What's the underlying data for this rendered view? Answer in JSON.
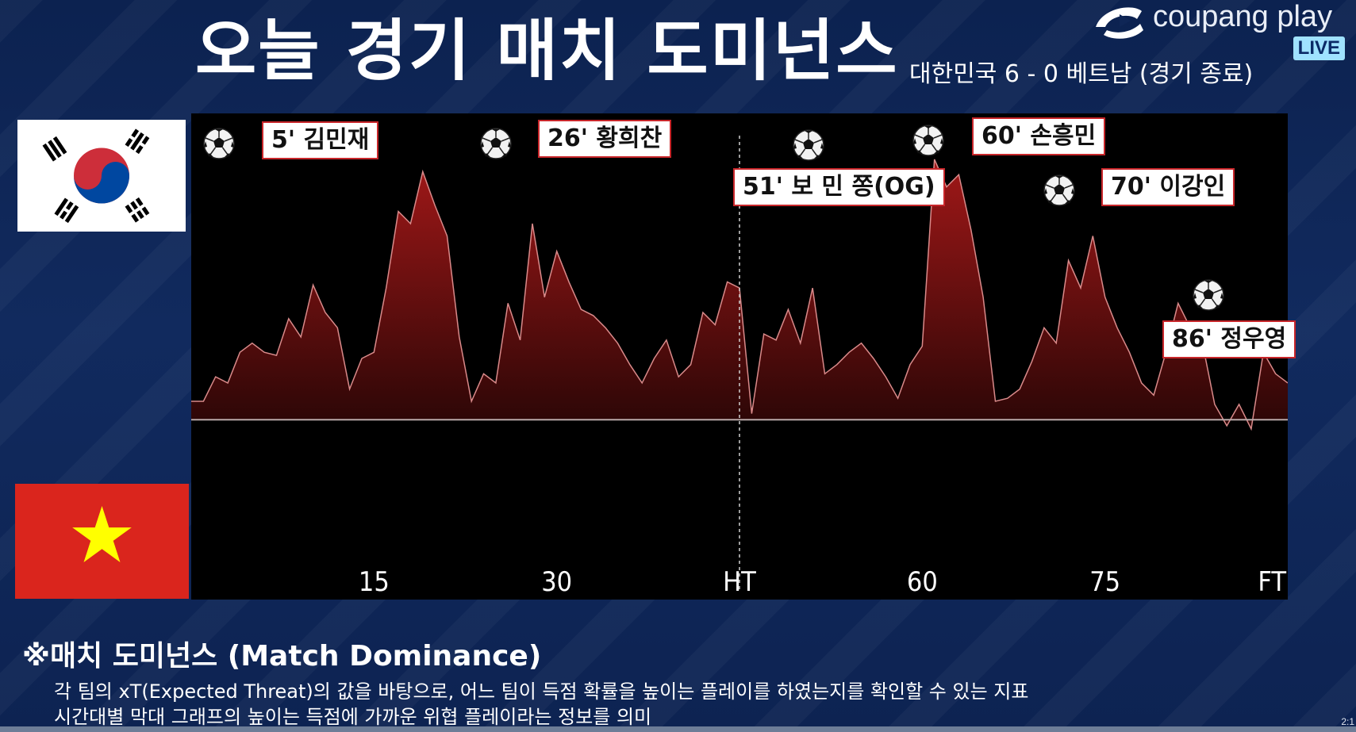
{
  "header": {
    "title": "오늘 경기 매치 도미넌스",
    "score": "대한민국 6 - 0 베트남 (경기 종료)"
  },
  "brand": {
    "name": "coupang play",
    "live": "LIVE",
    "logo_icon": "coupang-play-logo-icon"
  },
  "teams": {
    "top": {
      "name": "대한민국",
      "flag": "south-korea-flag"
    },
    "bottom": {
      "name": "베트남",
      "flag": "vietnam-flag"
    }
  },
  "colors": {
    "background": "#0f2656",
    "area_top": "#a11818",
    "area_bottom": "#2a0606",
    "outline": "#d98a8a",
    "label_border": "#c8262a"
  },
  "goals": [
    {
      "label": "5' 김민재",
      "minute": 5
    },
    {
      "label": "26' 황희찬",
      "minute": 26
    },
    {
      "label": "51' 보 민 쫑(OG)",
      "minute": 51
    },
    {
      "label": "60' 손흥민",
      "minute": 60
    },
    {
      "label": "70' 이강인",
      "minute": 70
    },
    {
      "label": "86' 정우영",
      "minute": 86
    }
  ],
  "note": {
    "title": "※매치 도미넌스 (Match Dominance)",
    "line1": "각 팀의 xT(Expected Threat)의 값을 바탕으로, 어느 팀이 득점 확률을 높이는 플레이를 하였는지를 확인할 수 있는 지표",
    "line2": "시간대별 막대 그래프의 높이는 득점에 가까운 위협 플레이라는 정보를 의미"
  },
  "timecode": "2:1",
  "chart_data": {
    "type": "area",
    "title": "오늘 경기 매치 도미넌스",
    "xlabel": "",
    "ylabel": "",
    "x_ticks": [
      {
        "minute": 15,
        "label": "15"
      },
      {
        "minute": 30,
        "label": "30"
      },
      {
        "minute": 45,
        "label": "HT"
      },
      {
        "minute": 60,
        "label": "60"
      },
      {
        "minute": 75,
        "label": "75"
      },
      {
        "minute": 90,
        "label": "FT"
      }
    ],
    "xlim": [
      0,
      90
    ],
    "ylim": [
      -0.45,
      1.0
    ],
    "halftime_line": 45,
    "grid": false,
    "series": [
      {
        "points": [
          [
            0,
            0.06
          ],
          [
            1,
            0.06
          ],
          [
            2,
            0.14
          ],
          [
            3,
            0.12
          ],
          [
            4,
            0.22
          ],
          [
            5,
            0.25
          ],
          [
            6,
            0.22
          ],
          [
            7,
            0.21
          ],
          [
            8,
            0.33
          ],
          [
            9,
            0.27
          ],
          [
            10,
            0.44
          ],
          [
            11,
            0.35
          ],
          [
            12,
            0.3
          ],
          [
            13,
            0.1
          ],
          [
            14,
            0.2
          ],
          [
            15,
            0.22
          ],
          [
            16,
            0.43
          ],
          [
            17,
            0.68
          ],
          [
            18,
            0.64
          ],
          [
            19,
            0.81
          ],
          [
            20,
            0.7
          ],
          [
            21,
            0.6
          ],
          [
            22,
            0.27
          ],
          [
            23,
            0.06
          ],
          [
            24,
            0.15
          ],
          [
            25,
            0.12
          ],
          [
            26,
            0.38
          ],
          [
            27,
            0.26
          ],
          [
            28,
            0.64
          ],
          [
            29,
            0.4
          ],
          [
            30,
            0.55
          ],
          [
            31,
            0.45
          ],
          [
            32,
            0.36
          ],
          [
            33,
            0.34
          ],
          [
            34,
            0.3
          ],
          [
            35,
            0.25
          ],
          [
            36,
            0.18
          ],
          [
            37,
            0.12
          ],
          [
            38,
            0.2
          ],
          [
            39,
            0.26
          ],
          [
            40,
            0.14
          ],
          [
            41,
            0.18
          ],
          [
            42,
            0.35
          ],
          [
            43,
            0.31
          ],
          [
            44,
            0.45
          ],
          [
            45,
            0.43
          ],
          [
            46,
            0.02
          ],
          [
            47,
            0.28
          ],
          [
            48,
            0.26
          ],
          [
            49,
            0.36
          ],
          [
            50,
            0.25
          ],
          [
            51,
            0.43
          ],
          [
            52,
            0.15
          ],
          [
            53,
            0.18
          ],
          [
            54,
            0.22
          ],
          [
            55,
            0.25
          ],
          [
            56,
            0.2
          ],
          [
            57,
            0.14
          ],
          [
            58,
            0.07
          ],
          [
            59,
            0.18
          ],
          [
            60,
            0.24
          ],
          [
            61,
            0.85
          ],
          [
            62,
            0.76
          ],
          [
            63,
            0.8
          ],
          [
            64,
            0.62
          ],
          [
            65,
            0.4
          ],
          [
            66,
            0.06
          ],
          [
            67,
            0.07
          ],
          [
            68,
            0.1
          ],
          [
            69,
            0.19
          ],
          [
            70,
            0.3
          ],
          [
            71,
            0.25
          ],
          [
            72,
            0.52
          ],
          [
            73,
            0.43
          ],
          [
            74,
            0.6
          ],
          [
            75,
            0.4
          ],
          [
            76,
            0.3
          ],
          [
            77,
            0.22
          ],
          [
            78,
            0.12
          ],
          [
            79,
            0.08
          ],
          [
            80,
            0.22
          ],
          [
            81,
            0.38
          ],
          [
            82,
            0.3
          ],
          [
            83,
            0.25
          ],
          [
            84,
            0.05
          ],
          [
            85,
            -0.02
          ],
          [
            86,
            0.05
          ],
          [
            87,
            -0.03
          ],
          [
            88,
            0.22
          ],
          [
            89,
            0.15
          ],
          [
            90,
            0.12
          ]
        ]
      }
    ]
  }
}
